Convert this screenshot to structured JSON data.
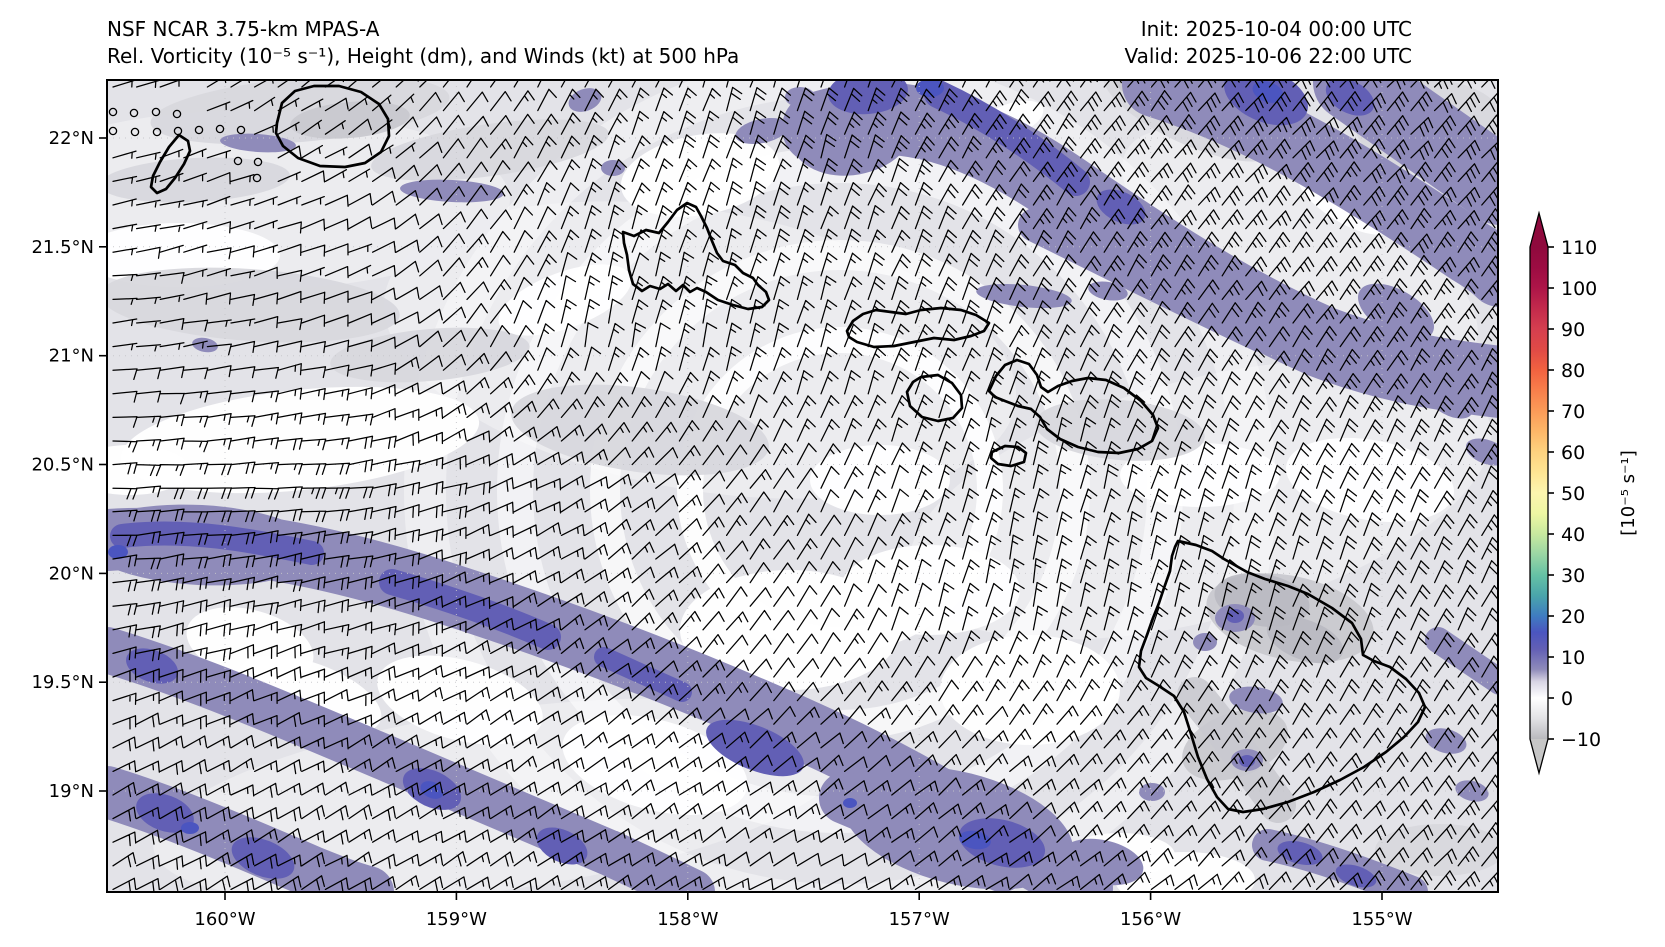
{
  "header": {
    "title_line1": "NSF NCAR 3.75-km MPAS-A",
    "title_line2": "Rel. Vorticity (10⁻⁵ s⁻¹), Height (dm), and Winds (kt) at 500 hPa",
    "init_label": "Init: 2025-10-04 00:00 UTC",
    "valid_label": "Valid: 2025-10-06 22:00 UTC"
  },
  "axes": {
    "lat_tick_labels": [
      "22°N",
      "21.5°N",
      "21°N",
      "20.5°N",
      "20°N",
      "19.5°N",
      "19°N"
    ],
    "lon_tick_labels": [
      "160°W",
      "159°W",
      "158°W",
      "157°W",
      "156°W",
      "155°W"
    ]
  },
  "colorbar": {
    "tick_labels": [
      "110",
      "100",
      "90",
      "80",
      "70",
      "60",
      "50",
      "40",
      "30",
      "20",
      "10",
      "0",
      "−10"
    ],
    "unit_label": "[10⁻⁵ s⁻¹]"
  },
  "chart_data": {
    "type": "heatmap",
    "title": "Rel. Vorticity (10⁻⁵ s⁻¹), Height (dm), and Winds (kt) at 500 hPa",
    "model": "NSF NCAR 3.75-km MPAS-A",
    "init_time": "2025-10-04 00:00 UTC",
    "valid_time": "2025-10-06 22:00 UTC",
    "level_hPa": 500,
    "region": "Hawaiian Islands",
    "lon_ticks_deg_west": [
      160,
      159,
      158,
      157,
      156,
      155
    ],
    "lat_ticks_deg_north": [
      22,
      21.5,
      21,
      20.5,
      20,
      19.5,
      19
    ],
    "lon_range_deg_west": [
      160.54,
      154.5
    ],
    "lat_range_deg_north": [
      18.54,
      22.27
    ],
    "grid": "dotted graticule at labeled ticks",
    "islands_outlined": [
      "Niihau",
      "Kauai",
      "Oahu",
      "Molokai",
      "Lanai",
      "Maui",
      "Kahoolawe",
      "Hawaii (Big Island)"
    ],
    "vorticity_field_summary": [
      "broad weak negative background (light gray ~ -5 to 0)",
      "positive bands +5 to +20 (gray-purple with indigo cores) arcing NE of the islands from 157W,22.2N to the SE map edge",
      "long SW positive band from west edge near 20.3N sweeping SE to the bottom edge near 156W",
      "secondary positive bands in the SW corner and along the bottom edge",
      "scattered positive cells over and SE of the Big Island",
      "calm/near-zero pocket with calm wind circles in NW corner near 160.4W,22.1N"
    ],
    "wind_barbs": {
      "units": "kt",
      "typical_range_kt": [
        0,
        35
      ],
      "notes": "NNE-NE 25-35 kt upper right; E 10-20 kt west; cyclonically curved 10-20 kt around islands; NE 15-25 kt along south"
    },
    "colorbar": {
      "min": -10,
      "max": 110,
      "tick_step": 10,
      "unit": "10⁻⁵ s⁻¹",
      "extend": "both",
      "colormap_stops": [
        [
          -10,
          "#b9b9bd"
        ],
        [
          -5,
          "#e2e2e5"
        ],
        [
          0,
          "#ffffff"
        ],
        [
          4,
          "#d8d5e4"
        ],
        [
          7,
          "#8f8bba"
        ],
        [
          12,
          "#625fb5"
        ],
        [
          16,
          "#4b55c0"
        ],
        [
          20,
          "#3f7cc1"
        ],
        [
          25,
          "#4aa5ab"
        ],
        [
          30,
          "#66c2a5"
        ],
        [
          35,
          "#9ad6a4"
        ],
        [
          40,
          "#c8e99f"
        ],
        [
          45,
          "#eef7a3"
        ],
        [
          50,
          "#fdf6af"
        ],
        [
          55,
          "#fee593"
        ],
        [
          60,
          "#fdd27f"
        ],
        [
          65,
          "#fdb768"
        ],
        [
          70,
          "#fb9b58"
        ],
        [
          75,
          "#f87f4b"
        ],
        [
          80,
          "#f16240"
        ],
        [
          85,
          "#e04a46"
        ],
        [
          90,
          "#d53e4f"
        ],
        [
          95,
          "#c32a4c"
        ],
        [
          100,
          "#ad1548"
        ],
        [
          105,
          "#9c0c42"
        ],
        [
          110,
          "#8f0a3d"
        ]
      ],
      "under_color": "#c6c6c6",
      "over_color": "#8f0a3d"
    },
    "palette": {
      "background_gray": "#e3e3e8",
      "light_gray": "#ececf0",
      "mid_gray": "#d8d8dd",
      "dark_gray": "#c9c9cf",
      "darker_gray": "#b9b9c1",
      "vort_purple": "#8f8bba",
      "vort_indigo": "#625fb5",
      "vort_blue": "#4b55c0"
    }
  }
}
